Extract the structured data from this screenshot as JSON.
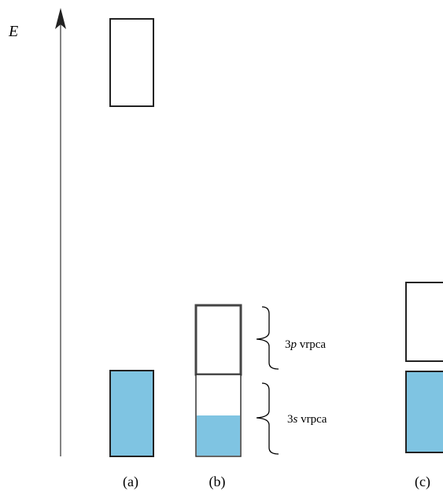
{
  "axis": {
    "label": "E"
  },
  "colors": {
    "filled": "#7fc4e2",
    "outline": "#222222",
    "background": "#ffffff"
  },
  "panels": [
    {
      "label": "(a)"
    },
    {
      "label": "(b)"
    },
    {
      "label": "(c)"
    }
  ],
  "bands": {
    "p": {
      "prefix": "3",
      "orbital": "p",
      "suffix": " vrpca"
    },
    "s": {
      "prefix": "3",
      "orbital": "s",
      "suffix": " vrpca"
    }
  },
  "band_b_s_fill_fraction": 0.5
}
